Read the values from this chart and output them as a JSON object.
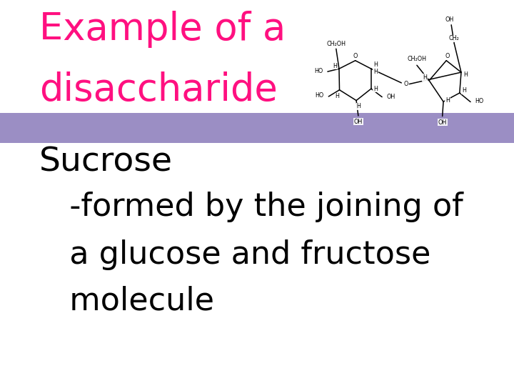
{
  "bg_color": "#ffffff",
  "title_line1": "Example of a",
  "title_line2": "disaccharide",
  "title_color": "#ff1080",
  "title_fontsize": 38,
  "purple_bar_color": "#9b8ec4",
  "sucrose_label": "Sucrose",
  "sucrose_fontsize": 34,
  "sucrose_color": "#000000",
  "body_line1": "   -formed by the joining of",
  "body_line2": "   a glucose and fructose",
  "body_line3": "   molecule",
  "body_fontsize": 32,
  "body_color": "#000000"
}
